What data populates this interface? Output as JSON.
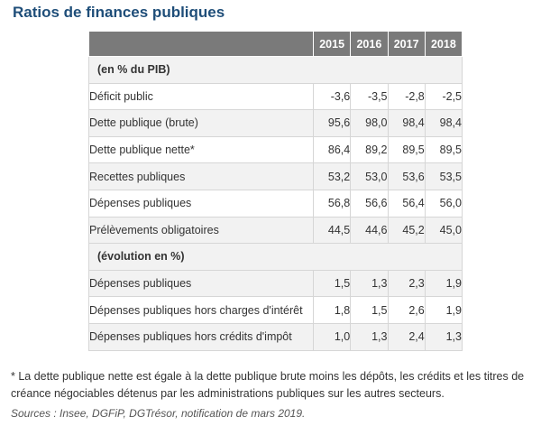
{
  "title": "Ratios de finances publiques",
  "table": {
    "years": [
      "2015",
      "2016",
      "2017",
      "2018"
    ],
    "sections": [
      {
        "heading": "(en % du PIB)",
        "rows": [
          {
            "label": "Déficit public",
            "values": [
              "-3,6",
              "-3,5",
              "-2,8",
              "-2,5"
            ]
          },
          {
            "label": "Dette publique (brute)",
            "values": [
              "95,6",
              "98,0",
              "98,4",
              "98,4"
            ]
          },
          {
            "label": "Dette publique nette*",
            "values": [
              "86,4",
              "89,2",
              "89,5",
              "89,5"
            ]
          },
          {
            "label": "Recettes publiques",
            "values": [
              "53,2",
              "53,0",
              "53,6",
              "53,5"
            ]
          },
          {
            "label": "Dépenses publiques",
            "values": [
              "56,8",
              "56,6",
              "56,4",
              "56,0"
            ]
          },
          {
            "label": "Prélèvements obligatoires",
            "values": [
              "44,5",
              "44,6",
              "45,2",
              "45,0"
            ]
          }
        ]
      },
      {
        "heading": "(évolution en %)",
        "rows": [
          {
            "label": "Dépenses publiques",
            "values": [
              "1,5",
              "1,3",
              "2,3",
              "1,9"
            ]
          },
          {
            "label": "Dépenses publiques hors charges d'intérêt",
            "values": [
              "1,8",
              "1,5",
              "2,6",
              "1,9"
            ]
          },
          {
            "label": "Dépenses publiques hors crédits d'impôt",
            "values": [
              "1,0",
              "1,3",
              "2,4",
              "1,3"
            ]
          }
        ]
      }
    ]
  },
  "footnote": "* La dette publique nette est égale à la dette publique brute moins les dépôts, les crédits et les titres de créance négociables détenus par les administrations publiques sur les autres secteurs.",
  "sources": "Sources : Insee, DGFiP, DGTrésor, notification de mars 2019."
}
